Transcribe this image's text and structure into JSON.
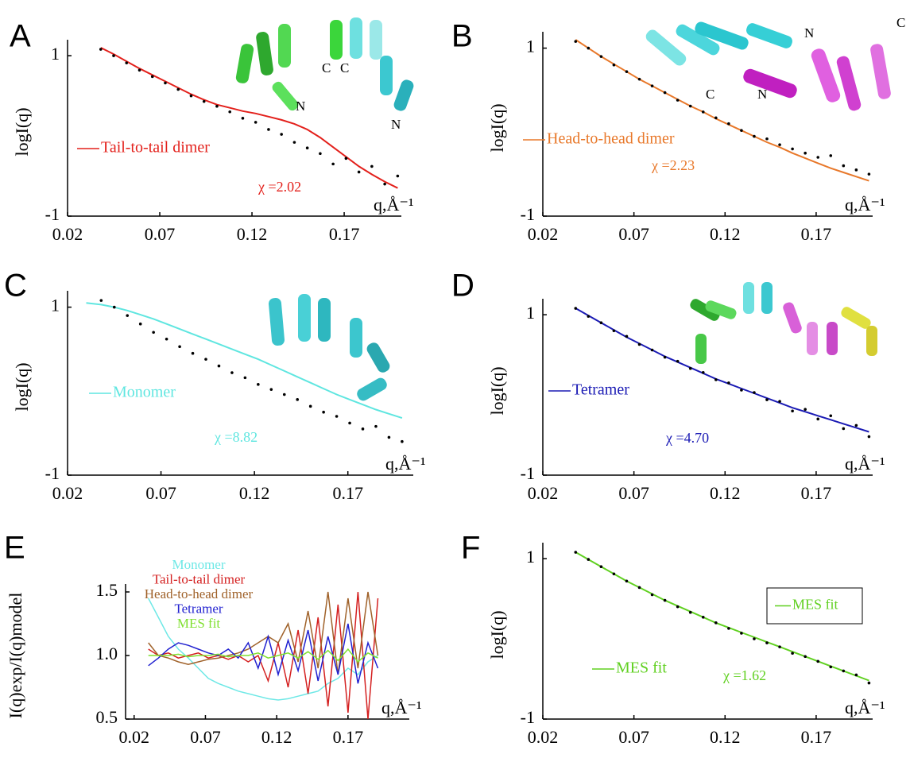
{
  "chart_data": [
    {
      "type": "scatter",
      "panel": "A",
      "y_label": "logI(q)",
      "x_label": "q,Å⁻¹",
      "chi_label": "χ =2.02",
      "structure_labels": [
        "C",
        "C",
        "N",
        "N"
      ],
      "xlim": [
        0.02,
        0.201
      ],
      "ylim": [
        -1,
        1.1
      ],
      "xticks": [
        0.02,
        0.07,
        0.12,
        0.17
      ],
      "yticks": [
        -1,
        1
      ],
      "x": [
        0.038,
        0.045,
        0.052,
        0.059,
        0.066,
        0.073,
        0.08,
        0.087,
        0.094,
        0.101,
        0.108,
        0.115,
        0.122,
        0.129,
        0.136,
        0.143,
        0.15,
        0.157,
        0.164,
        0.171,
        0.178,
        0.185,
        0.192,
        0.199
      ],
      "values": [
        1.08,
        1.0,
        0.91,
        0.82,
        0.74,
        0.66,
        0.58,
        0.5,
        0.43,
        0.37,
        0.3,
        0.22,
        0.17,
        0.08,
        0.02,
        -0.08,
        -0.15,
        -0.22,
        -0.35,
        -0.28,
        -0.45,
        -0.38,
        -0.6,
        -0.5
      ],
      "color": "#000000",
      "fit": {
        "name": "Tail-to-tail dimer",
        "color": "#e3201b",
        "values": [
          1.1,
          1.02,
          0.93,
          0.84,
          0.76,
          0.68,
          0.6,
          0.52,
          0.45,
          0.39,
          0.35,
          0.31,
          0.28,
          0.24,
          0.2,
          0.15,
          0.08,
          -0.02,
          -0.14,
          -0.26,
          -0.38,
          -0.48,
          -0.57,
          -0.65
        ]
      }
    },
    {
      "type": "scatter",
      "panel": "B",
      "y_label": "logI(q)",
      "x_label": "q,Å⁻¹",
      "chi_label": "χ =2.23",
      "structure_labels": [
        "N",
        "C",
        "C",
        "N"
      ],
      "xlim": [
        0.02,
        0.201
      ],
      "ylim": [
        -1,
        1.1
      ],
      "xticks": [
        0.02,
        0.07,
        0.12,
        0.17
      ],
      "yticks": [
        -1,
        1
      ],
      "x": [
        0.038,
        0.045,
        0.052,
        0.059,
        0.066,
        0.073,
        0.08,
        0.087,
        0.094,
        0.101,
        0.108,
        0.115,
        0.122,
        0.129,
        0.136,
        0.143,
        0.15,
        0.157,
        0.164,
        0.171,
        0.178,
        0.185,
        0.192,
        0.199
      ],
      "values": [
        1.08,
        1.0,
        0.9,
        0.8,
        0.72,
        0.63,
        0.55,
        0.47,
        0.38,
        0.31,
        0.24,
        0.17,
        0.1,
        0.02,
        -0.05,
        -0.08,
        -0.15,
        -0.2,
        -0.25,
        -0.3,
        -0.28,
        -0.4,
        -0.45,
        -0.5
      ],
      "color": "#000000",
      "fit": {
        "name": "Head-to-head dimer",
        "color": "#e8782a",
        "values": [
          1.1,
          1.0,
          0.9,
          0.81,
          0.72,
          0.63,
          0.55,
          0.47,
          0.39,
          0.31,
          0.24,
          0.16,
          0.09,
          0.02,
          -0.05,
          -0.12,
          -0.18,
          -0.25,
          -0.31,
          -0.37,
          -0.43,
          -0.48,
          -0.53,
          -0.58
        ]
      }
    },
    {
      "type": "scatter",
      "panel": "C",
      "y_label": "logI(q)",
      "x_label": "q,Å⁻¹",
      "chi_label": "χ =8.82",
      "xlim": [
        0.02,
        0.205
      ],
      "ylim": [
        -1,
        1.1
      ],
      "xticks": [
        0.02,
        0.07,
        0.12,
        0.17
      ],
      "yticks": [
        -1,
        1
      ],
      "x": [
        0.038,
        0.045,
        0.052,
        0.059,
        0.066,
        0.073,
        0.08,
        0.087,
        0.094,
        0.101,
        0.108,
        0.115,
        0.122,
        0.129,
        0.136,
        0.143,
        0.15,
        0.157,
        0.164,
        0.171,
        0.178,
        0.185,
        0.192,
        0.199
      ],
      "values": [
        1.08,
        1.0,
        0.9,
        0.8,
        0.7,
        0.62,
        0.53,
        0.45,
        0.38,
        0.3,
        0.22,
        0.16,
        0.08,
        0.02,
        -0.04,
        -0.1,
        -0.18,
        -0.25,
        -0.3,
        -0.38,
        -0.45,
        -0.42,
        -0.55,
        -0.6
      ],
      "color": "#000000",
      "fit": {
        "name": "Monomer",
        "color": "#5fe6e0",
        "x": [
          0.03,
          0.038,
          0.045,
          0.052,
          0.059,
          0.066,
          0.073,
          0.08,
          0.087,
          0.094,
          0.101,
          0.108,
          0.115,
          0.122,
          0.129,
          0.136,
          0.143,
          0.15,
          0.157,
          0.164,
          0.171,
          0.178,
          0.185,
          0.192,
          0.199
        ],
        "values": [
          1.05,
          1.03,
          1.0,
          0.96,
          0.91,
          0.86,
          0.8,
          0.74,
          0.68,
          0.62,
          0.56,
          0.5,
          0.44,
          0.38,
          0.31,
          0.24,
          0.17,
          0.1,
          0.03,
          -0.04,
          -0.1,
          -0.16,
          -0.22,
          -0.27,
          -0.32
        ]
      }
    },
    {
      "type": "scatter",
      "panel": "D",
      "y_label": "logI(q)",
      "x_label": "q,Å⁻¹",
      "chi_label": "χ =4.70",
      "xlim": [
        0.02,
        0.201
      ],
      "ylim": [
        -1,
        1.1
      ],
      "xticks": [
        0.02,
        0.07,
        0.12,
        0.17
      ],
      "yticks": [
        -1,
        1
      ],
      "x": [
        0.038,
        0.045,
        0.052,
        0.059,
        0.066,
        0.073,
        0.08,
        0.087,
        0.094,
        0.101,
        0.108,
        0.115,
        0.122,
        0.129,
        0.136,
        0.143,
        0.15,
        0.157,
        0.164,
        0.171,
        0.178,
        0.185,
        0.192,
        0.199
      ],
      "values": [
        1.08,
        0.98,
        0.9,
        0.8,
        0.73,
        0.63,
        0.56,
        0.47,
        0.42,
        0.33,
        0.28,
        0.19,
        0.15,
        0.06,
        0.03,
        -0.06,
        -0.08,
        -0.2,
        -0.18,
        -0.3,
        -0.26,
        -0.42,
        -0.38,
        -0.52
      ],
      "color": "#000000",
      "fit": {
        "name": "Tetramer",
        "color": "#1a1ab4",
        "values": [
          1.08,
          0.99,
          0.9,
          0.81,
          0.72,
          0.64,
          0.56,
          0.48,
          0.41,
          0.34,
          0.27,
          0.2,
          0.14,
          0.08,
          0.02,
          -0.04,
          -0.1,
          -0.16,
          -0.21,
          -0.26,
          -0.31,
          -0.36,
          -0.41,
          -0.46
        ]
      }
    },
    {
      "type": "line",
      "panel": "E",
      "y_label": "I(q)exp/I(q)model",
      "x_label": "q,Å⁻¹",
      "xlim": [
        0.014,
        0.213
      ],
      "ylim": [
        0.5,
        1.5
      ],
      "xticks": [
        0.02,
        0.07,
        0.12,
        0.17
      ],
      "yticks": [
        0.5,
        {
          "value": 1,
          "label": "1.0"
        },
        1.5
      ],
      "x": [
        0.03,
        0.037,
        0.044,
        0.051,
        0.058,
        0.065,
        0.072,
        0.079,
        0.086,
        0.093,
        0.1,
        0.107,
        0.114,
        0.121,
        0.128,
        0.135,
        0.142,
        0.149,
        0.156,
        0.163,
        0.17,
        0.177,
        0.184,
        0.191
      ],
      "series": [
        {
          "name": "Monomer",
          "color": "#6ee8e6",
          "values": [
            1.45,
            1.3,
            1.15,
            1.05,
            0.98,
            0.9,
            0.82,
            0.78,
            0.75,
            0.72,
            0.7,
            0.68,
            0.66,
            0.65,
            0.66,
            0.68,
            0.7,
            0.72,
            0.78,
            0.82,
            0.9,
            0.85,
            0.95,
            1.0
          ]
        },
        {
          "name": "Tail-to-tail dimer",
          "color": "#d42020",
          "values": [
            1.05,
            1.0,
            1.02,
            0.98,
            1.0,
            1.02,
            0.98,
            1.0,
            0.97,
            1.0,
            0.95,
            1.0,
            0.8,
            1.1,
            0.75,
            1.2,
            0.7,
            1.3,
            0.6,
            1.4,
            0.55,
            1.5,
            0.5,
            1.45
          ]
        },
        {
          "name": "Head-to-head dimer",
          "color": "#a0622a",
          "values": [
            1.1,
            1.0,
            0.98,
            0.95,
            0.93,
            0.95,
            0.97,
            0.98,
            1.0,
            1.02,
            1.05,
            1.1,
            1.15,
            1.1,
            1.25,
            0.95,
            1.35,
            0.9,
            1.5,
            0.85,
            1.45,
            0.9,
            1.5,
            1.0
          ]
        },
        {
          "name": "Tetramer",
          "color": "#2222d0",
          "values": [
            0.92,
            0.98,
            1.05,
            1.1,
            1.08,
            1.05,
            1.02,
            1.0,
            1.05,
            0.98,
            1.1,
            0.9,
            1.15,
            0.85,
            1.12,
            0.88,
            1.2,
            0.8,
            1.15,
            0.85,
            1.25,
            0.78,
            1.1,
            0.9
          ]
        },
        {
          "name": "MES fit",
          "color": "#80e030",
          "values": [
            1.0,
            1.0,
            1.0,
            1.01,
            0.99,
            1.0,
            1.0,
            1.01,
            0.99,
            1.0,
            1.0,
            1.02,
            0.98,
            1.0,
            1.02,
            0.98,
            1.03,
            0.97,
            1.04,
            0.96,
            1.05,
            0.95,
            1.02,
            0.98
          ]
        }
      ]
    },
    {
      "type": "scatter",
      "panel": "F",
      "y_label": "logI(q)",
      "x_label": "q,Å⁻¹",
      "chi_label": "χ =1.62",
      "legend_box": true,
      "xlim": [
        0.02,
        0.201
      ],
      "ylim": [
        -1,
        1.1
      ],
      "xticks": [
        0.02,
        0.07,
        0.12,
        0.17
      ],
      "yticks": [
        -1,
        1
      ],
      "x": [
        0.038,
        0.045,
        0.052,
        0.059,
        0.066,
        0.073,
        0.08,
        0.087,
        0.094,
        0.101,
        0.108,
        0.115,
        0.122,
        0.129,
        0.136,
        0.143,
        0.15,
        0.157,
        0.164,
        0.171,
        0.178,
        0.185,
        0.192,
        0.199
      ],
      "values": [
        1.08,
        0.99,
        0.9,
        0.81,
        0.72,
        0.64,
        0.55,
        0.48,
        0.4,
        0.33,
        0.27,
        0.2,
        0.13,
        0.07,
        0.0,
        -0.05,
        -0.1,
        -0.18,
        -0.22,
        -0.28,
        -0.35,
        -0.4,
        -0.45,
        -0.55
      ],
      "color": "#000000",
      "fit": {
        "name": "MES fit",
        "color": "#60d020",
        "values": [
          1.08,
          0.99,
          0.9,
          0.81,
          0.72,
          0.64,
          0.56,
          0.48,
          0.41,
          0.34,
          0.27,
          0.2,
          0.14,
          0.08,
          0.02,
          -0.04,
          -0.1,
          -0.16,
          -0.22,
          -0.28,
          -0.34,
          -0.4,
          -0.46,
          -0.52
        ]
      }
    }
  ]
}
